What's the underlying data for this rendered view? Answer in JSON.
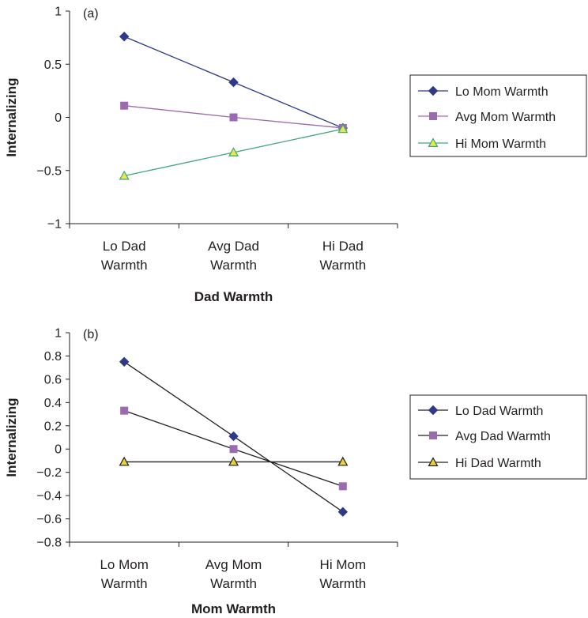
{
  "chart_data": [
    {
      "type": "line",
      "panel_label": "(a)",
      "categories": [
        [
          "Lo Dad",
          "Warmth"
        ],
        [
          "Avg Dad",
          "Warmth"
        ],
        [
          "Hi Dad",
          "Warmth"
        ]
      ],
      "xlabel": "Dad Warmth",
      "ylabel": "Internalizing",
      "ylim": [
        -1,
        1
      ],
      "yticks": [
        {
          "value": -1,
          "label": "−1"
        },
        {
          "value": -0.5,
          "label": "−0.5"
        },
        {
          "value": 0,
          "label": "0"
        },
        {
          "value": 0.5,
          "label": "0.5"
        },
        {
          "value": 1,
          "label": "1"
        }
      ],
      "grid": false,
      "legend_position": "right",
      "series": [
        {
          "name": "Lo Mom Warmth",
          "values": [
            0.76,
            0.33,
            -0.1
          ],
          "line_color": "#2e3a87",
          "marker": "diamond",
          "marker_color": "#2e3a87",
          "marker_stroke": "#2e3a87"
        },
        {
          "name": "Avg Mom Warmth",
          "values": [
            0.11,
            0.0,
            -0.1
          ],
          "line_color": "#9b6bb0",
          "marker": "square",
          "marker_color": "#9b6bb0",
          "marker_stroke": "#9b6bb0"
        },
        {
          "name": "Hi Mom Warmth",
          "values": [
            -0.55,
            -0.33,
            -0.11
          ],
          "line_color": "#3fa67a",
          "marker": "triangle",
          "marker_color": "#e8e84a",
          "marker_stroke": "#3fa67a"
        }
      ]
    },
    {
      "type": "line",
      "panel_label": "(b)",
      "categories": [
        [
          "Lo Mom",
          "Warmth"
        ],
        [
          "Avg Mom",
          "Warmth"
        ],
        [
          "Hi Mom",
          "Warmth"
        ]
      ],
      "xlabel": "Mom Warmth",
      "ylabel": "Internalizing",
      "ylim": [
        -0.8,
        1
      ],
      "yticks": [
        {
          "value": -0.8,
          "label": "−0.8"
        },
        {
          "value": -0.6,
          "label": "−0.6"
        },
        {
          "value": -0.4,
          "label": "−0.4"
        },
        {
          "value": -0.2,
          "label": "−0.2"
        },
        {
          "value": 0,
          "label": "0"
        },
        {
          "value": 0.2,
          "label": "0.2"
        },
        {
          "value": 0.4,
          "label": "0.4"
        },
        {
          "value": 0.6,
          "label": "0.6"
        },
        {
          "value": 0.8,
          "label": "0.8"
        },
        {
          "value": 1,
          "label": "1"
        }
      ],
      "grid": false,
      "legend_position": "right",
      "series": [
        {
          "name": "Lo Dad Warmth",
          "values": [
            0.75,
            0.11,
            -0.54
          ],
          "line_color": "#231f20",
          "marker": "diamond",
          "marker_color": "#2e3a87",
          "marker_stroke": "#2e3a87"
        },
        {
          "name": "Avg Dad Warmth",
          "values": [
            0.33,
            0.0,
            -0.32
          ],
          "line_color": "#231f20",
          "marker": "square",
          "marker_color": "#9b6bb0",
          "marker_stroke": "#9b6bb0"
        },
        {
          "name": "Hi Dad Warmth",
          "values": [
            -0.11,
            -0.11,
            -0.11
          ],
          "line_color": "#231f20",
          "marker": "triangle",
          "marker_color": "#e8d23a",
          "marker_stroke": "#231f20"
        }
      ]
    }
  ]
}
